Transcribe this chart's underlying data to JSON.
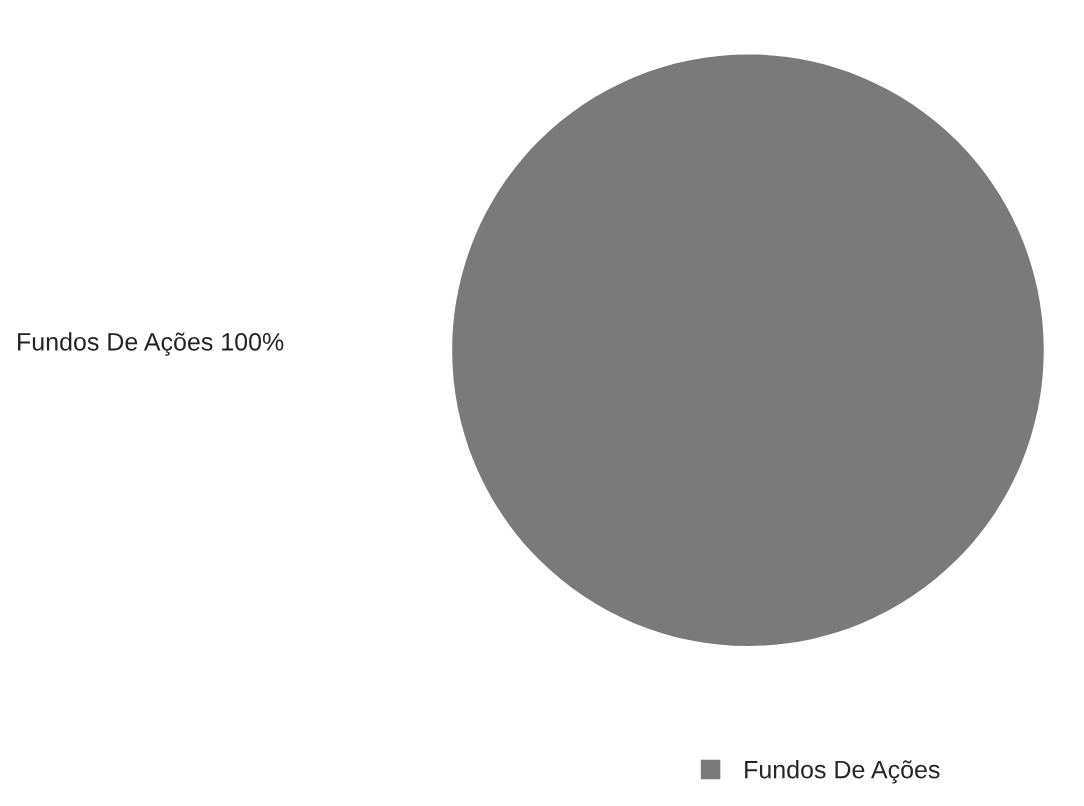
{
  "chart_data": {
    "type": "pie",
    "categories": [
      "Fundos De Ações"
    ],
    "values": [
      100
    ],
    "colors": [
      "#7a7a7a"
    ],
    "value_labels": [
      "100%"
    ],
    "legend": "bottom"
  }
}
